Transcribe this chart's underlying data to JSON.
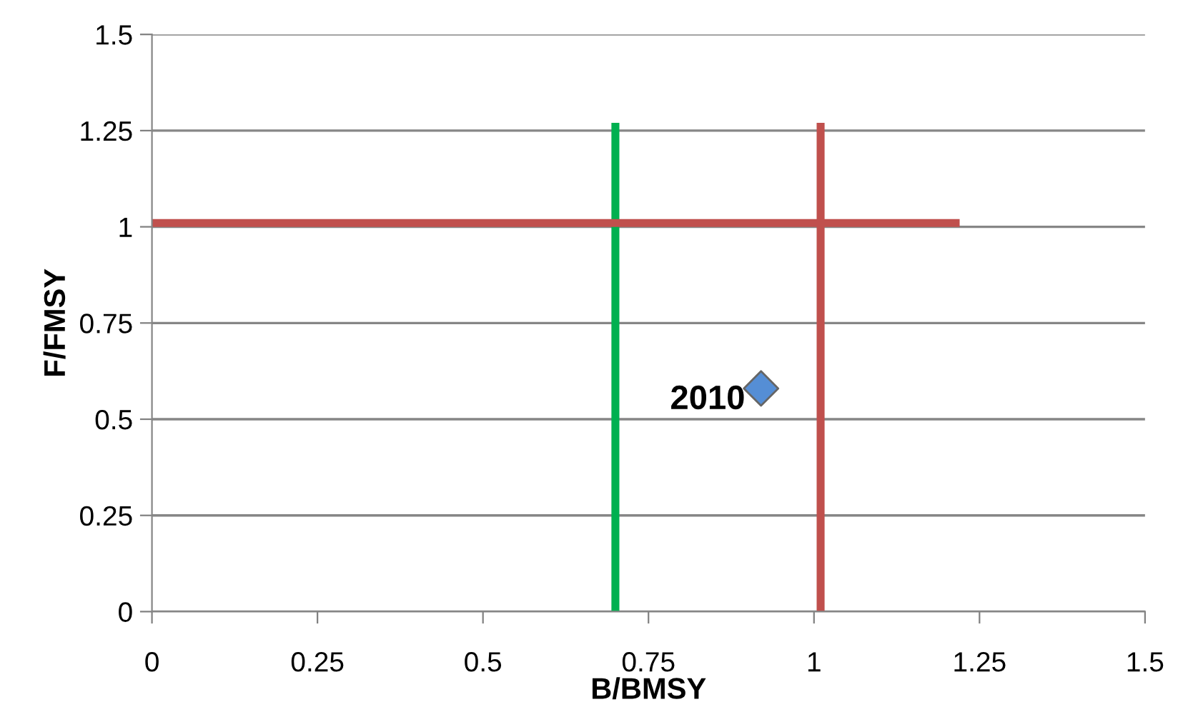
{
  "chart_data": {
    "type": "scatter",
    "xlabel": "B/BMSY",
    "ylabel": "F/FMSY",
    "xlim": [
      0,
      1.5
    ],
    "ylim": [
      0,
      1.5
    ],
    "xticks": [
      0,
      0.25,
      0.5,
      0.75,
      1,
      1.25,
      1.5
    ],
    "yticks": [
      0,
      0.25,
      0.5,
      0.75,
      1,
      1.25,
      1.5
    ],
    "grid": "y",
    "legend": false,
    "series": [
      {
        "type": "line",
        "color": "#00b050",
        "x": [
          0.7,
          0.7
        ],
        "values": [
          0,
          1.27
        ]
      },
      {
        "type": "line",
        "color": "#c0504d",
        "x": [
          1.01,
          1.01
        ],
        "values": [
          0,
          1.27
        ]
      },
      {
        "type": "line",
        "color": "#c0504d",
        "x": [
          0,
          1.22
        ],
        "values": [
          1.01,
          1.01
        ]
      },
      {
        "color": "#558ed5",
        "marker": "diamond",
        "x": [
          0.92
        ],
        "values": [
          0.58
        ]
      }
    ],
    "annotations": [
      {
        "text": "2010",
        "x": 0.92,
        "y": 0.58
      }
    ]
  }
}
